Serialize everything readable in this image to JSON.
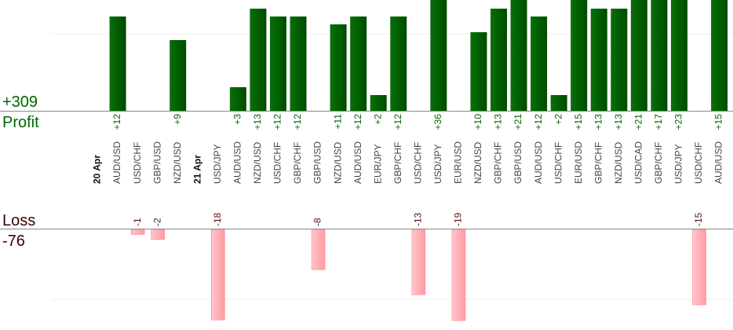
{
  "chart_data": {
    "type": "bar",
    "profit": {
      "label": "Profit",
      "total": "+309",
      "color": "#006400"
    },
    "loss": {
      "label": "Loss",
      "total": "-76",
      "color": "#ff9aa2"
    },
    "columns": [
      {
        "label": "20 Apr",
        "date": true
      },
      {
        "label": "AUD/USD",
        "profit": 12
      },
      {
        "label": "USD/CHF",
        "loss": -1
      },
      {
        "label": "GBP/USD",
        "loss": -2
      },
      {
        "label": "NZD/USD",
        "profit": 9
      },
      {
        "label": "21 Apr",
        "date": true
      },
      {
        "label": "USD/JPY",
        "loss": -18
      },
      {
        "label": "AUD/USD",
        "profit": 3
      },
      {
        "label": "NZD/USD",
        "profit": 13
      },
      {
        "label": "USD/CHF",
        "profit": 12
      },
      {
        "label": "GBP/CHF",
        "profit": 12
      },
      {
        "label": "GBP/USD",
        "loss": -8
      },
      {
        "label": "NZD/USD",
        "profit": 11
      },
      {
        "label": "AUD/USD",
        "profit": 12
      },
      {
        "label": "EUR/JPY",
        "profit": 2
      },
      {
        "label": "GBP/CHF",
        "profit": 12
      },
      {
        "label": "USD/CHF",
        "loss": -13
      },
      {
        "label": "USD/JPY",
        "profit": 36
      },
      {
        "label": "EUR/USD",
        "loss": -19
      },
      {
        "label": "NZD/USD",
        "profit": 10
      },
      {
        "label": "GBP/CHF",
        "profit": 13
      },
      {
        "label": "GBP/USD",
        "profit": 21
      },
      {
        "label": "AUD/USD",
        "profit": 12
      },
      {
        "label": "USD/CHF",
        "profit": 2
      },
      {
        "label": "EUR/USD",
        "profit": 15
      },
      {
        "label": "GBP/CHF",
        "profit": 13
      },
      {
        "label": "NZD/USD",
        "profit": 13
      },
      {
        "label": "USD/CAD",
        "profit": 21
      },
      {
        "label": "GBP/CHF",
        "profit": 17
      },
      {
        "label": "USD/JPY",
        "profit": 23
      },
      {
        "label": "USD/CHF",
        "loss": -15
      },
      {
        "label": "AUD/USD",
        "profit": 15
      }
    ],
    "grid": true
  }
}
